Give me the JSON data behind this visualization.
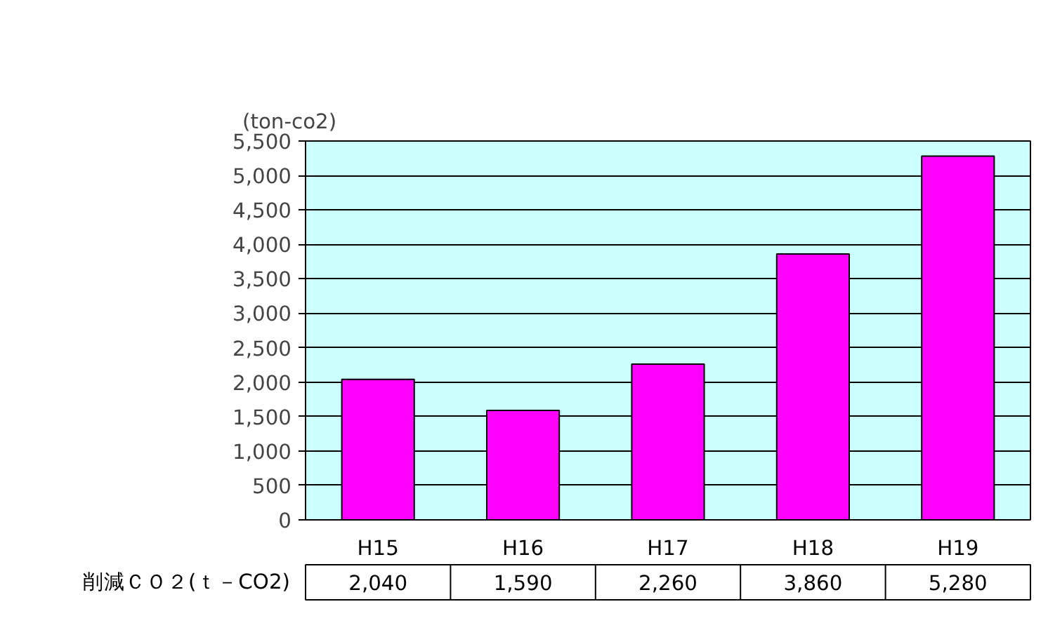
{
  "chart_data": {
    "type": "bar",
    "ylabel": "(ton-co2)",
    "categories": [
      "H15",
      "H16",
      "H17",
      "H18",
      "H19"
    ],
    "series": [
      {
        "name": "削減ＣＯ２(ｔ－CO2)",
        "color": "#ff00ff",
        "values": [
          2040,
          1590,
          2260,
          3860,
          5280
        ],
        "value_labels": [
          "2,040",
          "1,590",
          "2,260",
          "3,860",
          "5,280"
        ]
      }
    ],
    "ylim": [
      0,
      5500
    ],
    "yticks": [
      {
        "value": 0,
        "label": "0"
      },
      {
        "value": 500,
        "label": "500"
      },
      {
        "value": 1000,
        "label": "1,000"
      },
      {
        "value": 1500,
        "label": "1,500"
      },
      {
        "value": 2000,
        "label": "2,000"
      },
      {
        "value": 2500,
        "label": "2,500"
      },
      {
        "value": 3000,
        "label": "3,000"
      },
      {
        "value": 3500,
        "label": "3,500"
      },
      {
        "value": 4000,
        "label": "4,000"
      },
      {
        "value": 4500,
        "label": "4,500"
      },
      {
        "value": 5000,
        "label": "5,000"
      },
      {
        "value": 5500,
        "label": "5,500"
      }
    ],
    "grid": "y"
  }
}
